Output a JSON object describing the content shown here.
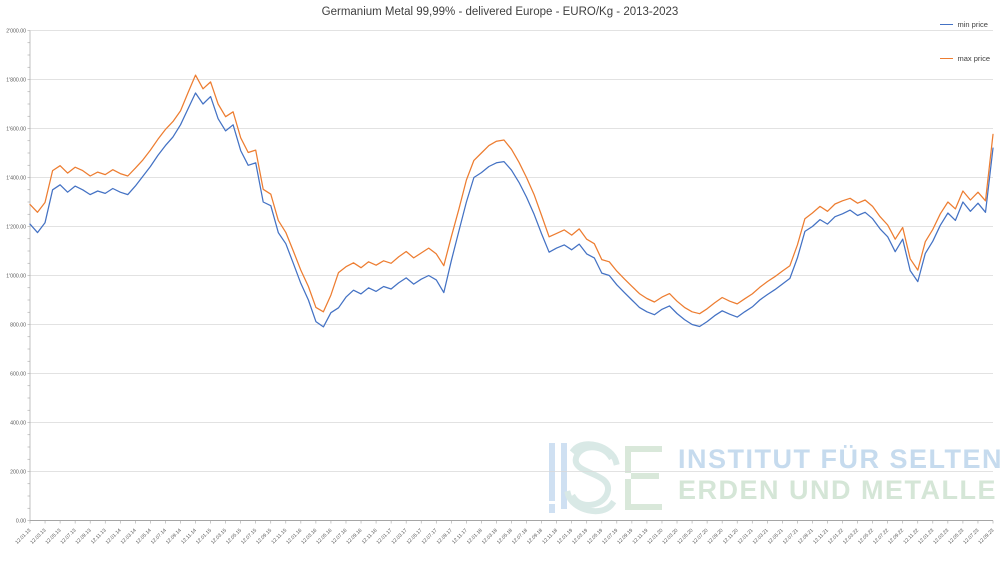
{
  "chart": {
    "title": "Germanium Metal 99,99% - delivered Europe - EURO/Kg  - 2013-2023",
    "legend": [
      {
        "label": "min price",
        "color": "#4472C4"
      },
      {
        "label": "max price",
        "color": "#ED7D31"
      }
    ]
  },
  "watermark": {
    "logo": "ISE",
    "line1": "INSTITUT FÜR SELTENE",
    "line2": "ERDEN UND METALLE AG",
    "line1_color": "#c6dbee",
    "line2_color": "#d5e6d7",
    "logo_blue": "#cfe0f2",
    "logo_green": "#d9e8da",
    "logo_mint": "#d9e9e6"
  },
  "colors": {
    "gridline": "#d9d9d9",
    "axis": "#a6a6a6",
    "tick_label": "#595959"
  },
  "chart_data": {
    "type": "line",
    "title": "Germanium Metal 99,99% - delivered Europe - EURO/Kg  - 2013-2023",
    "xlabel": "",
    "ylabel": "",
    "ylim": [
      0,
      2000
    ],
    "y_interval": 200,
    "grid": "horizontal",
    "legend_position": "top-right",
    "y_ticks": [
      "2'000.00",
      "1'800.00",
      "1'600.00",
      "1'400.00",
      "1'200.00",
      "1'000.00",
      "800.00",
      "600.00",
      "400.00",
      "200.00",
      "0.00"
    ],
    "x_labels": [
      "12.01.13",
      "12.03.13",
      "12.05.13",
      "12.07.13",
      "12.09.13",
      "12.11.13",
      "12.01.14",
      "12.03.14",
      "12.05.14",
      "12.07.14",
      "12.09.14",
      "12.11.14",
      "12.01.15",
      "12.03.15",
      "12.05.15",
      "12.07.15",
      "12.09.15",
      "12.11.15",
      "12.01.16",
      "12.03.16",
      "12.05.16",
      "12.07.16",
      "12.09.16",
      "12.11.16",
      "12.01.17",
      "12.03.17",
      "12.05.17",
      "12.07.17",
      "12.09.17",
      "12.11.17",
      "12.01.18",
      "12.03.18",
      "12.05.18",
      "12.07.18",
      "12.09.18",
      "12.11.18",
      "12.01.19",
      "12.03.19",
      "12.05.19",
      "12.07.19",
      "12.09.19",
      "12.11.19",
      "12.01.20",
      "12.03.20",
      "12.05.20",
      "12.07.20",
      "12.09.20",
      "12.11.20",
      "12.01.21",
      "12.03.21",
      "12.05.21",
      "12.07.21",
      "12.09.21",
      "12.11.21",
      "12.01.22",
      "12.03.22",
      "12.05.22",
      "12.07.22",
      "12.09.22",
      "12.11.22",
      "12.01.23",
      "12.03.23",
      "12.05.23",
      "12.07.23",
      "12.09.23"
    ],
    "x_label_step": 2,
    "series": [
      {
        "name": "min price",
        "color": "#4472C4",
        "values": [
          1210,
          1175,
          1215,
          1350,
          1370,
          1340,
          1365,
          1350,
          1330,
          1345,
          1335,
          1355,
          1340,
          1330,
          1365,
          1405,
          1445,
          1490,
          1530,
          1565,
          1615,
          1680,
          1745,
          1700,
          1730,
          1640,
          1590,
          1615,
          1510,
          1450,
          1460,
          1300,
          1285,
          1175,
          1130,
          1050,
          968,
          900,
          812,
          790,
          848,
          868,
          912,
          940,
          925,
          950,
          935,
          955,
          945,
          970,
          990,
          965,
          985,
          1000,
          982,
          930,
          1060,
          1180,
          1300,
          1400,
          1420,
          1445,
          1460,
          1465,
          1430,
          1380,
          1320,
          1250,
          1170,
          1095,
          1112,
          1125,
          1105,
          1128,
          1088,
          1072,
          1010,
          1000,
          962,
          930,
          900,
          870,
          852,
          840,
          862,
          876,
          845,
          820,
          800,
          792,
          812,
          836,
          856,
          842,
          830,
          852,
          872,
          900,
          922,
          942,
          965,
          988,
          1072,
          1180,
          1200,
          1228,
          1210,
          1240,
          1252,
          1267,
          1245,
          1258,
          1232,
          1190,
          1158,
          1097,
          1148,
          1020,
          975,
          1090,
          1140,
          1205,
          1255,
          1225,
          1300,
          1262,
          1295,
          1258,
          1520
        ]
      },
      {
        "name": "max price",
        "color": "#ED7D31",
        "values": [
          1290,
          1258,
          1298,
          1428,
          1448,
          1418,
          1442,
          1428,
          1406,
          1422,
          1412,
          1432,
          1416,
          1406,
          1438,
          1472,
          1512,
          1556,
          1596,
          1628,
          1672,
          1746,
          1818,
          1762,
          1790,
          1700,
          1648,
          1668,
          1562,
          1502,
          1512,
          1352,
          1332,
          1225,
          1176,
          1100,
          1022,
          955,
          870,
          852,
          920,
          1012,
          1036,
          1052,
          1032,
          1056,
          1042,
          1060,
          1050,
          1076,
          1098,
          1072,
          1092,
          1112,
          1088,
          1040,
          1158,
          1270,
          1390,
          1470,
          1500,
          1530,
          1548,
          1553,
          1515,
          1462,
          1400,
          1330,
          1245,
          1158,
          1172,
          1186,
          1165,
          1190,
          1148,
          1130,
          1065,
          1056,
          1018,
          986,
          956,
          926,
          906,
          892,
          912,
          926,
          895,
          870,
          852,
          844,
          864,
          888,
          910,
          895,
          884,
          905,
          925,
          952,
          975,
          995,
          1018,
          1040,
          1125,
          1232,
          1255,
          1282,
          1262,
          1292,
          1305,
          1315,
          1295,
          1308,
          1282,
          1240,
          1206,
          1148,
          1196,
          1068,
          1022,
          1138,
          1188,
          1252,
          1300,
          1272,
          1345,
          1308,
          1340,
          1305,
          1576
        ]
      }
    ]
  }
}
